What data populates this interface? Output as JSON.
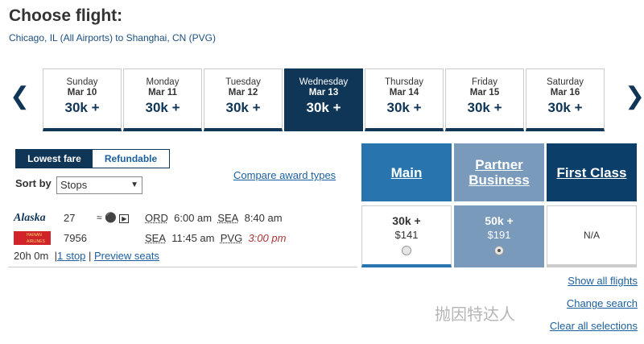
{
  "title": "Choose flight:",
  "route": "Chicago, IL (All Airports) to Shanghai, CN (PVG)",
  "dates": [
    {
      "day": "Sunday",
      "date": "Mar 10",
      "price": "30k +"
    },
    {
      "day": "Monday",
      "date": "Mar 11",
      "price": "30k +"
    },
    {
      "day": "Tuesday",
      "date": "Mar 12",
      "price": "30k +"
    },
    {
      "day": "Wednesday",
      "date": "Mar 13",
      "price": "30k +",
      "selected": true
    },
    {
      "day": "Thursday",
      "date": "Mar 14",
      "price": "30k +"
    },
    {
      "day": "Friday",
      "date": "Mar 15",
      "price": "30k +"
    },
    {
      "day": "Saturday",
      "date": "Mar 16",
      "price": "30k +"
    }
  ],
  "toggle": {
    "lowest": "Lowest fare",
    "refundable": "Refundable"
  },
  "sort": {
    "label": "Sort by",
    "value": "Stops"
  },
  "compare": "Compare award types",
  "fare_types": [
    {
      "label": "Main",
      "color": "#2774ae"
    },
    {
      "label": "Partner Business",
      "color": "#7a9abb"
    },
    {
      "label": "First Class",
      "color": "#0b3f6a"
    }
  ],
  "fares": [
    {
      "points": "30k +",
      "cash": "$141",
      "selected": false
    },
    {
      "points": "50k +",
      "cash": "$191",
      "selected": true
    },
    {
      "na": "N/A"
    }
  ],
  "flight": {
    "segments": [
      {
        "airline": "Alaska",
        "number": "27",
        "from": "ORD",
        "dep": "6:00 am",
        "to": "SEA",
        "arr": "8:40 am"
      },
      {
        "airline": "HAINAN AIRLINES",
        "number": "7956",
        "from": "SEA",
        "dep": "11:45 am",
        "to": "PVG",
        "arr": "3:00 pm"
      }
    ],
    "duration": "20h 0m",
    "stops": "1 stop",
    "preview": "Preview seats"
  },
  "links": {
    "show_all": "Show all flights",
    "change": "Change search",
    "clear": "Clear all selections"
  },
  "watermark": "抛因特达人"
}
